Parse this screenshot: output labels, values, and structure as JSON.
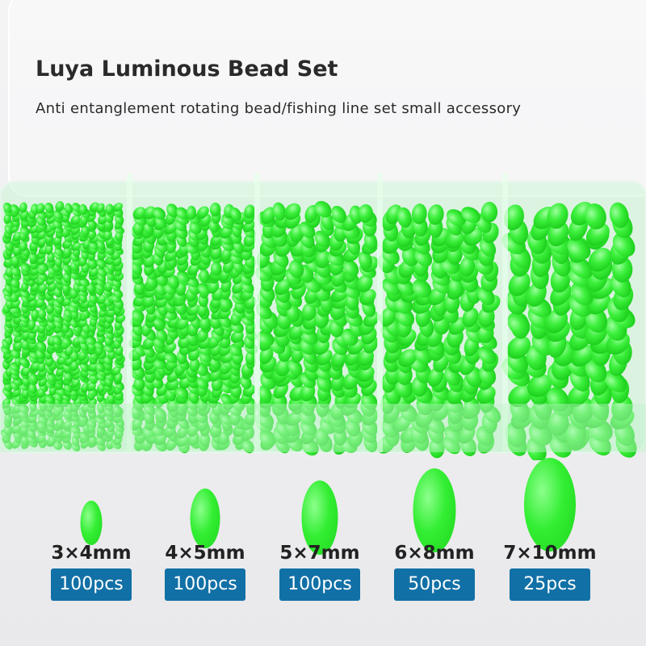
{
  "title": "Luya Luminous Bead Set",
  "subtitle": "Anti entanglement rotating bead/fishing line set small accessory",
  "colors": {
    "bead": "#33ee33",
    "badge": "#1170a6",
    "text": "#222222"
  },
  "sizes": [
    {
      "size": "3×4mm",
      "count": "100pcs"
    },
    {
      "size": "4×5mm",
      "count": "100pcs"
    },
    {
      "size": "5×7mm",
      "count": "100pcs"
    },
    {
      "size": "6×8mm",
      "count": "50pcs"
    },
    {
      "size": "7×10mm",
      "count": "25pcs"
    }
  ]
}
